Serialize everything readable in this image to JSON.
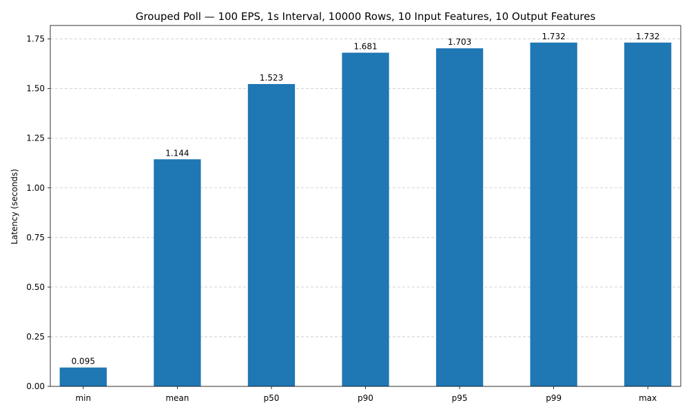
{
  "chart_data": {
    "type": "bar",
    "title": "Grouped Poll — 100 EPS, 1s Interval, 10000 Rows, 10 Input Features, 10 Output Features",
    "xlabel": "",
    "ylabel": "Latency (seconds)",
    "categories": [
      "min",
      "mean",
      "p50",
      "p90",
      "p95",
      "p99",
      "max"
    ],
    "values": [
      0.095,
      1.144,
      1.523,
      1.681,
      1.703,
      1.732,
      1.732
    ],
    "value_labels": [
      "0.095",
      "1.144",
      "1.523",
      "1.681",
      "1.703",
      "1.732",
      "1.732"
    ],
    "ylim": [
      0,
      1.818
    ],
    "yticks": [
      0.0,
      0.25,
      0.5,
      0.75,
      1.0,
      1.25,
      1.5,
      1.75
    ],
    "ytick_labels": [
      "0.00",
      "0.25",
      "0.50",
      "0.75",
      "1.00",
      "1.25",
      "1.50",
      "1.75"
    ],
    "grid": {
      "y": true,
      "x": false,
      "style": "dashed"
    },
    "legend": "none",
    "bar_color": "#1f77b4",
    "grid_color": "#c4c4c4"
  }
}
